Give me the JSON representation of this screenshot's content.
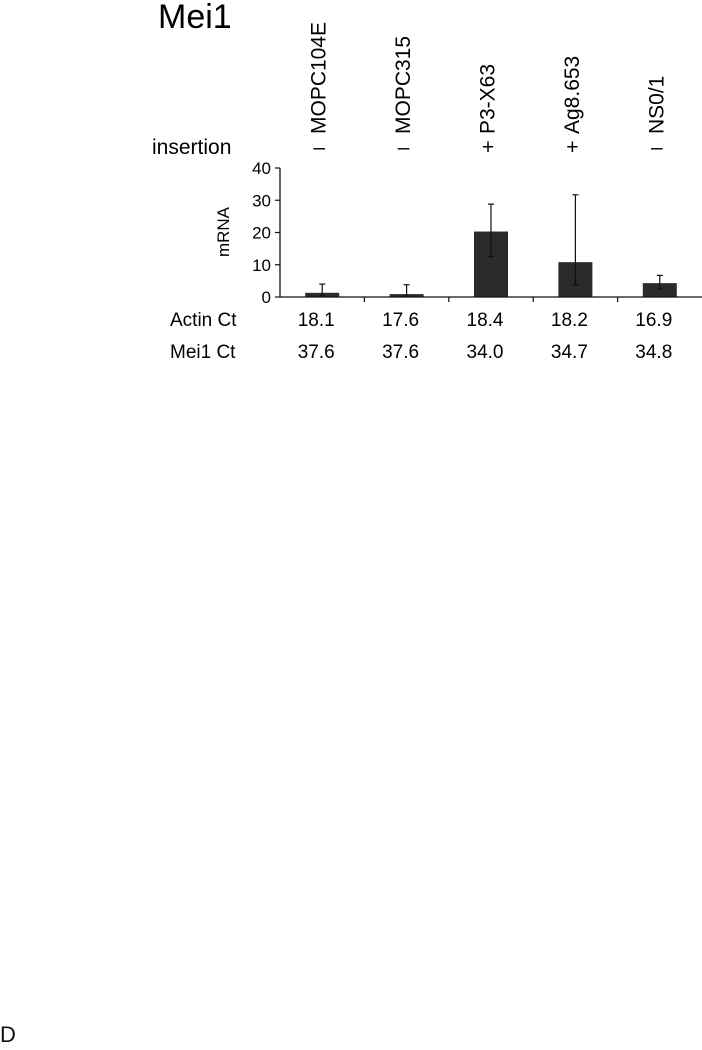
{
  "chart_data": {
    "type": "bar",
    "title": "Mei1",
    "ylabel": "mRNA",
    "ylim": [
      0,
      40
    ],
    "yticks": [
      0,
      10,
      20,
      30,
      40
    ],
    "categories": [
      "MOPC104E",
      "MOPC315",
      "P3-X63",
      "Ag8.653",
      "NS0/1"
    ],
    "values": [
      1.3,
      0.9,
      20.3,
      10.8,
      4.3
    ],
    "error_low": [
      0.4,
      0.3,
      12.5,
      3.8,
      2.5
    ],
    "error_high": [
      4.0,
      3.8,
      28.8,
      31.7,
      6.7
    ],
    "bar_color": "#2b2b2b",
    "grid": false,
    "legend": "none",
    "insertion_label": "insertion",
    "insertion": [
      "–",
      "–",
      "+",
      "+",
      "–"
    ],
    "rows": [
      {
        "label": "Actin Ct",
        "values": [
          "18.1",
          "17.6",
          "18.4",
          "18.2",
          "16.9"
        ]
      },
      {
        "label": "Mei1 Ct",
        "values": [
          "37.6",
          "37.6",
          "34.0",
          "34.7",
          "34.8"
        ]
      }
    ]
  },
  "footer": {
    "letter": "D"
  }
}
